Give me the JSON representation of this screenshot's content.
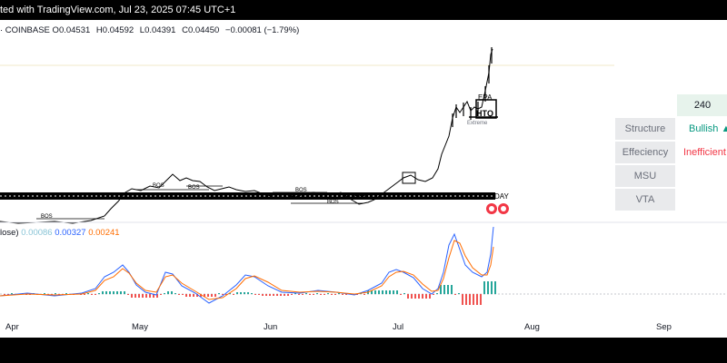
{
  "header": {
    "caption": "ted with TradingView.com, Jul 23, 2025 07:45 UTC+1"
  },
  "ohlc": {
    "symbol_prefix": "· COINBASE",
    "open_key": "O",
    "open": "0.04531",
    "high_key": "H",
    "high": "0.04592",
    "low_key": "L",
    "low": "0.04391",
    "close_key": "C",
    "close": "0.04450",
    "change": "−0.00081 (−1.79%)"
  },
  "indicator": {
    "name_fragment": "lose)",
    "v1": "0.00086",
    "v1_color": "#89c4d6",
    "v2": "0.00327",
    "v2_color": "#2962ff",
    "v3": "0.00241",
    "v3_color": "#ff6d00"
  },
  "annotations": {
    "bos": "BOS",
    "epa": "EPA",
    "extreme": "Extreme",
    "high_low_label": "HTQ",
    "session": "DAY"
  },
  "table": {
    "top_value": "240",
    "rows": [
      {
        "label": "Structure",
        "value": "Bullish  ▲",
        "value_color": "#089981"
      },
      {
        "label": "Effeciency",
        "value": "Inefficient",
        "value_color": "#f23645"
      },
      {
        "label": "MSU",
        "value": ""
      },
      {
        "label": "VTA",
        "value": ""
      }
    ]
  },
  "x_axis": {
    "labels": [
      "Apr",
      "May",
      "Jun",
      "Jul",
      "Aug",
      "Sep"
    ]
  },
  "colors": {
    "candle": "#000000",
    "bos_line": "#000000",
    "macd_blue": "#2962ff",
    "macd_orange": "#ff6d00",
    "hist_up": "#26a69a",
    "hist_down": "#ef5350",
    "bullish": "#089981",
    "bearish": "#f23645"
  }
}
